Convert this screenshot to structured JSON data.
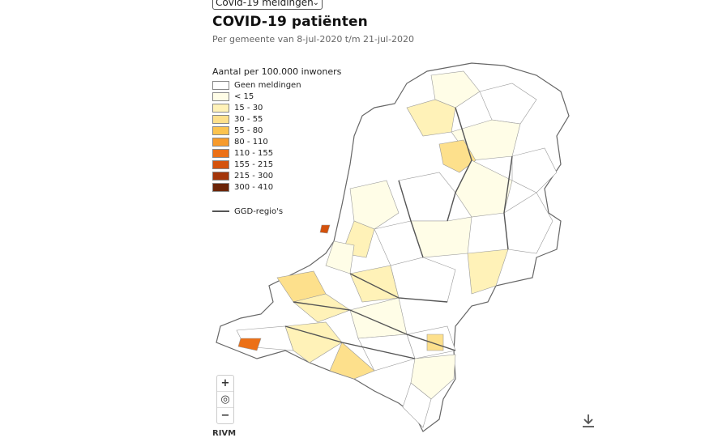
{
  "dataset_select": {
    "value": "Covid-19 meldingen"
  },
  "title": "COVID-19 patiënten",
  "subtitle": "Per gemeente van 8-jul-2020 t/m 21-jul-2020",
  "legend": {
    "title": "Aantal per 100.000 inwoners",
    "classes": [
      {
        "label": "Geen meldingen",
        "color": "#ffffff"
      },
      {
        "label": "< 15",
        "color": "#fffde7"
      },
      {
        "label": "15 - 30",
        "color": "#fff2b8"
      },
      {
        "label": "30 - 55",
        "color": "#fde08c"
      },
      {
        "label": "55 - 80",
        "color": "#fbc34f"
      },
      {
        "label": "80 - 110",
        "color": "#f79b2c"
      },
      {
        "label": "110 - 155",
        "color": "#ec7016"
      },
      {
        "label": "155 - 215",
        "color": "#d4520c"
      },
      {
        "label": "215 - 300",
        "color": "#a4360a"
      },
      {
        "label": "300 - 410",
        "color": "#6b2408"
      }
    ],
    "ggd_label": "GGD-regio's"
  },
  "zoom": {
    "in": "+",
    "locate": "◎",
    "out": "−"
  },
  "credit": "RIVM",
  "icons": {
    "download": "download-icon",
    "locate": "locate-icon"
  }
}
